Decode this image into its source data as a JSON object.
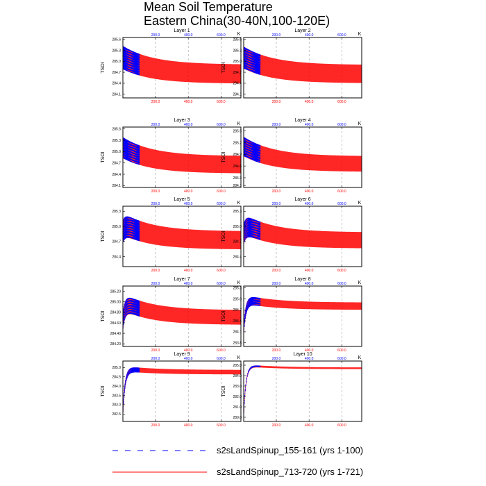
{
  "page": {
    "title_line1": "Mean Soil Temperature",
    "title_line2": "Eastern China(30-40N,100-120E)"
  },
  "colors": {
    "series1": "#0000ff",
    "series2": "#ff0000",
    "axis": "#000000",
    "grid": "#9a9a9a",
    "bottom_tick_labels": "#ff0000",
    "top_tick_labels": "#0000ff"
  },
  "chart_data": [
    {
      "type": "line",
      "title": "Layer 1",
      "ylabel": "TSOI",
      "unit": "K",
      "ylim": [
        284.0,
        285.65
      ],
      "yticks": [
        285.6,
        285.3,
        285.0,
        284.7,
        284.4,
        284.1
      ],
      "ytick_labels": [
        "285.6",
        "285.3",
        "285.0",
        "284.7",
        "284.4",
        "284.1"
      ],
      "xlim": [
        1,
        721
      ],
      "xticks": [
        200,
        400,
        600
      ],
      "xtick_labels": [
        "200.0",
        "400.0",
        "600.0"
      ],
      "series_meta": {
        "spin_start": 285.1,
        "end_mean": 284.65,
        "amp_start": 0.32,
        "amp_end": 0.26,
        "rise": 0
      },
      "series": [
        {
          "name": "s2sLandSpinup_155-161 (yrs 1-100)",
          "years": [
            1,
            100
          ],
          "mean_start": 285.1,
          "mean_end": 284.95
        },
        {
          "name": "s2sLandSpinup_713-720 (yrs 1-721)",
          "years": [
            1,
            721
          ],
          "mean_start": 285.1,
          "mean_end": 284.65
        }
      ]
    },
    {
      "type": "line",
      "title": "Layer 2",
      "ylabel": "TSOI",
      "unit": "K",
      "ylim": [
        284.0,
        285.65
      ],
      "yticks": [
        285.6,
        285.3,
        285.0,
        284.7,
        284.4,
        284.1
      ],
      "ytick_labels": [
        "285.6",
        "285.3",
        "285.0",
        "284.7",
        "284.4",
        "284.1"
      ],
      "xlim": [
        1,
        721
      ],
      "xticks": [
        200,
        400,
        600
      ],
      "xtick_labels": [
        "200.0",
        "400.0",
        "600.0"
      ],
      "series_meta": {
        "spin_start": 285.1,
        "end_mean": 284.65,
        "amp_start": 0.3,
        "amp_end": 0.25,
        "rise": 0
      },
      "series": [
        {
          "name": "s2sLandSpinup_155-161 (yrs 1-100)",
          "years": [
            1,
            100
          ],
          "mean_start": 285.1,
          "mean_end": 284.95
        },
        {
          "name": "s2sLandSpinup_713-720 (yrs 1-721)",
          "years": [
            1,
            721
          ],
          "mean_start": 285.1,
          "mean_end": 284.65
        }
      ]
    },
    {
      "type": "line",
      "title": "Layer 3",
      "ylabel": "TSOI",
      "unit": "K",
      "ylim": [
        284.05,
        285.65
      ],
      "yticks": [
        285.6,
        285.3,
        285.0,
        284.7,
        284.4,
        284.1
      ],
      "ytick_labels": [
        "285.6",
        "285.3",
        "285.0",
        "284.7",
        "284.4",
        "284.1"
      ],
      "xlim": [
        1,
        721
      ],
      "xticks": [
        200,
        400,
        600
      ],
      "xtick_labels": [
        "200.0",
        "400.0",
        "600.0"
      ],
      "series_meta": {
        "spin_start": 285.1,
        "end_mean": 284.65,
        "amp_start": 0.28,
        "amp_end": 0.23,
        "rise": 0
      },
      "series": [
        {
          "name": "s2sLandSpinup_155-161 (yrs 1-100)",
          "years": [
            1,
            100
          ],
          "mean_start": 285.1,
          "mean_end": 284.95
        },
        {
          "name": "s2sLandSpinup_713-720 (yrs 1-721)",
          "years": [
            1,
            721
          ],
          "mean_start": 285.1,
          "mean_end": 284.65
        }
      ]
    },
    {
      "type": "line",
      "title": "Layer 4",
      "ylabel": "TSOI",
      "unit": "K",
      "ylim": [
        284.05,
        285.6
      ],
      "yticks": [
        285.5,
        285.2,
        284.9,
        284.6,
        284.3,
        284.1
      ],
      "ytick_labels": [
        "285.5",
        "285.2",
        "284.9",
        "284.6",
        "284.3",
        "284.1"
      ],
      "xlim": [
        1,
        721
      ],
      "xticks": [
        200,
        400,
        600
      ],
      "xtick_labels": [
        "200.0",
        "400.0",
        "600.0"
      ],
      "series_meta": {
        "spin_start": 285.1,
        "end_mean": 284.65,
        "amp_start": 0.25,
        "amp_end": 0.2,
        "rise": 0
      },
      "series": [
        {
          "name": "s2sLandSpinup_155-161 (yrs 1-100)",
          "years": [
            1,
            100
          ],
          "mean_start": 285.1,
          "mean_end": 284.95
        },
        {
          "name": "s2sLandSpinup_713-720 (yrs 1-721)",
          "years": [
            1,
            721
          ],
          "mean_start": 285.1,
          "mean_end": 284.65
        }
      ]
    },
    {
      "type": "line",
      "title": "Layer 5",
      "ylabel": "TSOI",
      "unit": "K",
      "ylim": [
        284.2,
        285.4
      ],
      "yticks": [
        285.3,
        285.0,
        284.7,
        284.4
      ],
      "ytick_labels": [
        "285.3",
        "285.0",
        "284.7",
        "284.4"
      ],
      "xlim": [
        1,
        721
      ],
      "xticks": [
        200,
        400,
        600
      ],
      "xtick_labels": [
        "200.0",
        "400.0",
        "600.0"
      ],
      "series_meta": {
        "spin_start": 285.05,
        "end_mean": 284.72,
        "amp_start": 0.22,
        "amp_end": 0.18,
        "rise": 0.15
      },
      "series": [
        {
          "name": "s2sLandSpinup_155-161 (yrs 1-100)",
          "years": [
            1,
            100
          ],
          "mean_start": 285.05,
          "mean_end": 284.95
        },
        {
          "name": "s2sLandSpinup_713-720 (yrs 1-721)",
          "years": [
            1,
            721
          ],
          "mean_start": 285.05,
          "mean_end": 284.72
        }
      ]
    },
    {
      "type": "line",
      "title": "Layer 6",
      "ylabel": "TSOI",
      "unit": "K",
      "ylim": [
        284.2,
        285.4
      ],
      "yticks": [
        285.3,
        285.0,
        284.7,
        284.4
      ],
      "ytick_labels": [
        "285.3",
        "285.0",
        "284.7",
        "284.4"
      ],
      "xlim": [
        1,
        721
      ],
      "xticks": [
        200,
        400,
        600
      ],
      "xtick_labels": [
        "200.0",
        "400.0",
        "600.0"
      ],
      "series_meta": {
        "spin_start": 285.05,
        "end_mean": 284.72,
        "amp_start": 0.2,
        "amp_end": 0.16,
        "rise": 0.2
      },
      "series": [
        {
          "name": "s2sLandSpinup_155-161 (yrs 1-100)",
          "years": [
            1,
            100
          ],
          "mean_start": 285.05,
          "mean_end": 284.95
        },
        {
          "name": "s2sLandSpinup_713-720 (yrs 1-721)",
          "years": [
            1,
            721
          ],
          "mean_start": 285.05,
          "mean_end": 284.72
        }
      ]
    },
    {
      "type": "line",
      "title": "Layer 7",
      "ylabel": "TSOI",
      "unit": "K",
      "ylim": [
        284.15,
        285.3
      ],
      "yticks": [
        285.2,
        285.0,
        284.8,
        284.6,
        284.4,
        284.2
      ],
      "ytick_labels": [
        "285.20",
        "285.00",
        "284.80",
        "284.60",
        "284.40",
        "284.20"
      ],
      "xlim": [
        1,
        721
      ],
      "xticks": [
        200,
        400,
        600
      ],
      "xtick_labels": [
        "200.0",
        "400.0",
        "600.0"
      ],
      "series_meta": {
        "spin_start": 285.0,
        "end_mean": 284.7,
        "amp_start": 0.16,
        "amp_end": 0.14,
        "rise": 0.35
      },
      "series": [
        {
          "name": "s2sLandSpinup_155-161 (yrs 1-100)",
          "years": [
            1,
            100
          ],
          "mean_start": 285.0,
          "mean_end": 284.9
        },
        {
          "name": "s2sLandSpinup_713-720 (yrs 1-721)",
          "years": [
            1,
            721
          ],
          "mean_start": 285.0,
          "mean_end": 284.7
        }
      ]
    },
    {
      "type": "line",
      "title": "Layer 8",
      "ylabel": "TSOI",
      "unit": "K",
      "ylim": [
        283.7,
        285.35
      ],
      "yticks": [
        285.3,
        285.0,
        284.7,
        284.4,
        284.1,
        283.8
      ],
      "ytick_labels": [
        "285.3",
        "285.0",
        "284.7",
        "284.4",
        "284.1",
        "283.8"
      ],
      "xlim": [
        1,
        721
      ],
      "xticks": [
        200,
        400,
        600
      ],
      "xtick_labels": [
        "200.0",
        "400.0",
        "600.0"
      ],
      "series_meta": {
        "spin_start": 285.0,
        "end_mean": 284.8,
        "amp_start": 0.12,
        "amp_end": 0.1,
        "rise": 0.8
      },
      "series": [
        {
          "name": "s2sLandSpinup_155-161 (yrs 1-100)",
          "years": [
            1,
            100
          ],
          "mean_start": 285.0,
          "mean_end": 284.95
        },
        {
          "name": "s2sLandSpinup_713-720 (yrs 1-721)",
          "years": [
            1,
            721
          ],
          "mean_start": 285.0,
          "mean_end": 284.8
        }
      ]
    },
    {
      "type": "line",
      "title": "Layer 9",
      "ylabel": "TSOI",
      "unit": "K",
      "ylim": [
        282.1,
        285.35
      ],
      "yticks": [
        285.0,
        284.5,
        284.0,
        283.5,
        283.0,
        282.5
      ],
      "ytick_labels": [
        "285.0",
        "284.5",
        "284.0",
        "283.5",
        "283.0",
        "282.5"
      ],
      "xlim": [
        1,
        721
      ],
      "xticks": [
        200,
        400,
        600
      ],
      "xtick_labels": [
        "200.0",
        "400.0",
        "600.0"
      ],
      "series_meta": {
        "spin_start": 284.95,
        "end_mean": 284.75,
        "amp_start": 0.14,
        "amp_end": 0.12,
        "rise": 2.2
      },
      "series": [
        {
          "name": "s2sLandSpinup_155-161 (yrs 1-100)",
          "years": [
            1,
            100
          ],
          "mean_start": 284.95,
          "mean_end": 284.95
        },
        {
          "name": "s2sLandSpinup_713-720 (yrs 1-721)",
          "years": [
            1,
            721
          ],
          "mean_start": 284.95,
          "mean_end": 284.75
        }
      ]
    },
    {
      "type": "line",
      "title": "Layer 10",
      "ylabel": "TSOI",
      "unit": "K",
      "ylim": [
        279.6,
        285.4
      ],
      "yticks": [
        285.0,
        284.0,
        283.0,
        282.0,
        281.0,
        280.0
      ],
      "ytick_labels": [
        "285.0",
        "284.0",
        "283.0",
        "282.0",
        "281.0",
        "280.0"
      ],
      "xlim": [
        1,
        721
      ],
      "xticks": [
        200,
        400,
        600
      ],
      "xtick_labels": [
        "200.0",
        "400.0",
        "600.0"
      ],
      "series_meta": {
        "spin_start": 285.0,
        "end_mean": 284.7,
        "amp_start": 0.1,
        "amp_end": 0.08,
        "rise": 4.5
      },
      "series": [
        {
          "name": "s2sLandSpinup_155-161 (yrs 1-100)",
          "years": [
            1,
            100
          ],
          "mean_start": 285.0,
          "mean_end": 285.0
        },
        {
          "name": "s2sLandSpinup_713-720 (yrs 1-721)",
          "years": [
            1,
            721
          ],
          "mean_start": 285.0,
          "mean_end": 284.7
        }
      ]
    }
  ],
  "legend": {
    "items": [
      {
        "label": "s2sLandSpinup_155-161 (yrs 1-100)",
        "color": "#0000ff",
        "style": "dashed"
      },
      {
        "label": "s2sLandSpinup_713-720 (yrs 1-721)",
        "color": "#ff0000",
        "style": "solid"
      }
    ]
  }
}
